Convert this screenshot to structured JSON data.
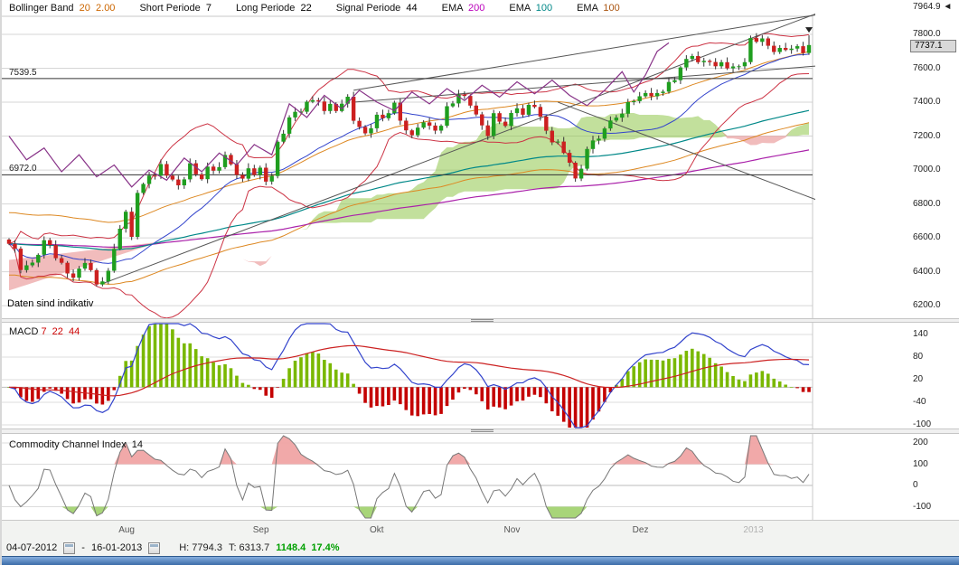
{
  "header": {
    "indicators": [
      {
        "label": "Bollinger Band",
        "value": "20  2.00",
        "value_color": "#cc6600"
      },
      {
        "label": "Short Periode",
        "value": "7",
        "value_color": "#000000"
      },
      {
        "label": "Long Periode",
        "value": "22",
        "value_color": "#000000"
      },
      {
        "label": "Signal Periode",
        "value": "44",
        "value_color": "#000000"
      },
      {
        "label": "EMA",
        "value": "200",
        "value_color": "#bb00bb"
      },
      {
        "label": "EMA",
        "value": "100",
        "value_color": "#008888"
      },
      {
        "label": "EMA",
        "value": "100",
        "value_color": "#aa5511"
      }
    ]
  },
  "watermark": "Daten sind indikativ",
  "panels": {
    "macd": {
      "label": "MACD",
      "params": "7  22  44",
      "axis": [
        140,
        80,
        20,
        -40,
        -100
      ]
    },
    "cci": {
      "label": "Commodity Channel Index",
      "params": "14",
      "axis": [
        200,
        100,
        0,
        -100
      ]
    }
  },
  "price_axis": {
    "max_label": "7964.9",
    "current_label": "7737.1",
    "ticks": [
      7800,
      7600,
      7400,
      7200,
      7000,
      6800,
      6600,
      6400,
      6200
    ]
  },
  "hlines": [
    {
      "price": 7539.5,
      "label": "7539.5"
    },
    {
      "price": 6972.0,
      "label": "6972.0"
    }
  ],
  "x_axis": {
    "months": [
      {
        "label": "Aug",
        "index": 20,
        "muted": false
      },
      {
        "label": "Sep",
        "index": 43,
        "muted": false
      },
      {
        "label": "Okt",
        "index": 63,
        "muted": false
      },
      {
        "label": "Nov",
        "index": 86,
        "muted": false
      },
      {
        "label": "Dez",
        "index": 108,
        "muted": false
      },
      {
        "label": "2013",
        "index": 127,
        "muted": true
      }
    ]
  },
  "status_bar": {
    "date_from": "04-07-2012",
    "separator": "-",
    "date_to": "16-01-2013",
    "high": "H: 7794.3",
    "low": "T: 6313.7",
    "change": "1148.4",
    "change_pct": "17.4%"
  },
  "colors": {
    "candle_up": "#1f9e1f",
    "candle_down": "#cc2020",
    "wick": "#333333",
    "cloud_bull": "#8fc74a",
    "cloud_bear": "#e89090",
    "bollinger": "#cc3344",
    "bollinger_mid": "#3344cc",
    "ema200": "#aa22aa",
    "ema100": "#008888",
    "envelope": "#dd8822",
    "overlay_purple": "#883388",
    "trendline": "#555555",
    "hline": "#333333",
    "grid": "#d6d6d6",
    "border": "#c8c8c8",
    "macd_line": "#3344cc",
    "macd_signal": "#cc2222",
    "hist_up": "#7ab800",
    "hist_down": "#c40000",
    "cci_line": "#777777",
    "cci_above": "#f0a0a0",
    "cci_below": "#9ed06a",
    "change_positive": "#00a000",
    "bottom_bar": "#3c6ca8"
  },
  "chart_data": {
    "type": "candlestick+macd+cci",
    "x_range_dates": [
      "04-07-2012",
      "16-01-2013"
    ],
    "price_ylim": [
      6200,
      7964.9
    ],
    "period_high": 7794.3,
    "period_low": 6313.7,
    "first_open": 6590,
    "closes": [
      6565,
      6536,
      6410,
      6438,
      6454,
      6500,
      6586,
      6557,
      6480,
      6453,
      6390,
      6365,
      6419,
      6452,
      6410,
      6325,
      6343,
      6406,
      6535,
      6654,
      6754,
      6606,
      6865,
      6918,
      6967,
      6966,
      7035,
      6967,
      6944,
      6910,
      6945,
      7040,
      6975,
      6946,
      7020,
      6996,
      7017,
      7089,
      7034,
      6971,
      6949,
      7010,
      6971,
      7014,
      6932,
      6965,
      7167,
      7214,
      7310,
      7343,
      7344,
      7403,
      7412,
      7404,
      7348,
      7390,
      7348,
      7391,
      7432,
      7290,
      7254,
      7216,
      7246,
      7326,
      7305,
      7335,
      7397,
      7291,
      7234,
      7205,
      7250,
      7281,
      7262,
      7232,
      7261,
      7376,
      7393,
      7445,
      7437,
      7380,
      7328,
      7263,
      7200,
      7335,
      7285,
      7260,
      7336,
      7364,
      7326,
      7384,
      7372,
      7315,
      7232,
      7163,
      7168,
      7101,
      7043,
      6950,
      7008,
      7124,
      7174,
      7185,
      7245,
      7292,
      7309,
      7332,
      7400,
      7406,
      7435,
      7454,
      7435,
      7454,
      7462,
      7519,
      7530,
      7605,
      7655,
      7672,
      7636,
      7644,
      7637,
      7612,
      7636,
      7600,
      7611,
      7612,
      7636,
      7778,
      7756,
      7776,
      7733,
      7696,
      7720,
      7708,
      7716,
      7730,
      7690,
      7737.1
    ],
    "trendlines": [
      [
        16,
        6330,
        140,
        7945
      ],
      [
        59,
        7470,
        140,
        7925
      ],
      [
        59,
        7400,
        139,
        7615
      ],
      [
        94,
        7400,
        139,
        6815
      ]
    ],
    "purple_line": [
      [
        0,
        7200
      ],
      [
        3,
        7060
      ],
      [
        6,
        7130
      ],
      [
        9,
        6990
      ],
      [
        12,
        7090
      ],
      [
        15,
        6960
      ],
      [
        18,
        7030
      ],
      [
        21,
        6900
      ],
      [
        24,
        7000
      ],
      [
        27,
        6940
      ],
      [
        30,
        7070
      ],
      [
        33,
        6990
      ],
      [
        36,
        7100
      ],
      [
        39,
        7030
      ],
      [
        42,
        7150
      ],
      [
        45,
        7090
      ],
      [
        48,
        7390
      ],
      [
        51,
        7310
      ],
      [
        54,
        7440
      ],
      [
        57,
        7360
      ],
      [
        60,
        7470
      ],
      [
        63,
        7400
      ],
      [
        66,
        7350
      ],
      [
        69,
        7460
      ],
      [
        72,
        7390
      ],
      [
        75,
        7480
      ],
      [
        78,
        7410
      ],
      [
        81,
        7500
      ],
      [
        84,
        7430
      ],
      [
        87,
        7520
      ],
      [
        90,
        7450
      ],
      [
        93,
        7530
      ],
      [
        96,
        7440
      ],
      [
        99,
        7380
      ],
      [
        102,
        7470
      ],
      [
        105,
        7580
      ],
      [
        107,
        7460
      ],
      [
        109,
        7560
      ],
      [
        111,
        7700
      ],
      [
        113,
        7750
      ]
    ],
    "ichimoku_seed": {
      "spanA": 6290,
      "spanB": 6470
    },
    "indicators": {
      "bollinger_period": 20,
      "bollinger_dev": 2.0,
      "macd_fast": 7,
      "macd_slow": 22,
      "macd_signal": 44,
      "cci_period": 14,
      "ema_periods": [
        200,
        100
      ],
      "envelope": {
        "period": 60,
        "pct": 2.8
      },
      "ichimoku": {
        "tenkan": 9,
        "kijun": 26,
        "senkou": 52,
        "shift": 26
      }
    }
  }
}
